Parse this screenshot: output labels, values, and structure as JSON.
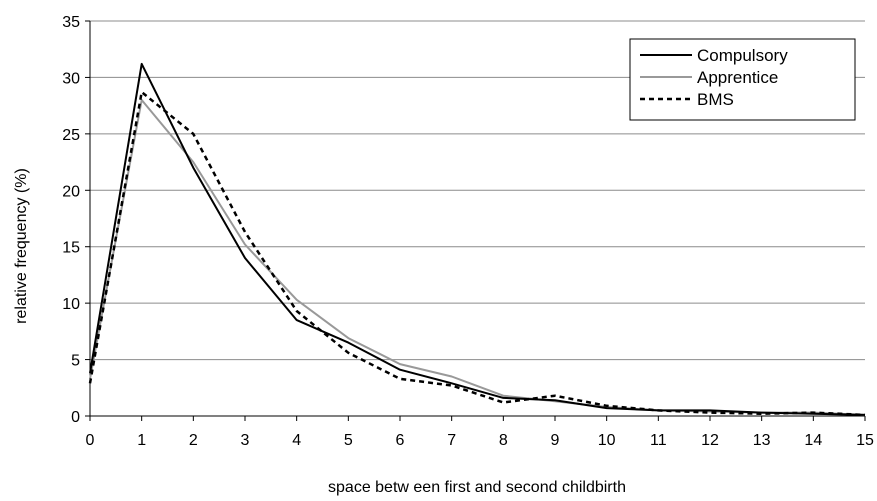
{
  "chart_data": {
    "type": "line",
    "title": "",
    "xlabel": "space betw een first and second childbirth",
    "ylabel": "relative frequency (%)",
    "xlim": [
      0,
      15
    ],
    "ylim": [
      0,
      35
    ],
    "x_ticks": [
      "0",
      "1",
      "2",
      "3",
      "4",
      "5",
      "6",
      "7",
      "8",
      "9",
      "10",
      "11",
      "12",
      "13",
      "14",
      "15"
    ],
    "y_ticks": [
      "0",
      "5",
      "10",
      "15",
      "20",
      "25",
      "30",
      "35"
    ],
    "grid": "horizontal",
    "legend_position": "top-right",
    "x": [
      0,
      1,
      2,
      3,
      4,
      5,
      6,
      7,
      8,
      9,
      10,
      11,
      12,
      13,
      14,
      15
    ],
    "series": [
      {
        "name": "Compulsory",
        "color": "#000000",
        "dash": "solid",
        "values": [
          3.8,
          31.2,
          22.0,
          14.0,
          8.5,
          6.5,
          4.1,
          2.9,
          1.6,
          1.4,
          0.7,
          0.5,
          0.5,
          0.3,
          0.2,
          0.1
        ]
      },
      {
        "name": "Apprentice",
        "color": "#999999",
        "dash": "solid",
        "values": [
          3.3,
          28.0,
          22.5,
          15.2,
          10.3,
          6.9,
          4.6,
          3.5,
          1.8,
          1.3,
          0.8,
          0.5,
          0.4,
          0.3,
          0.3,
          0.1
        ]
      },
      {
        "name": "BMS",
        "color": "#000000",
        "dash": "dashed",
        "values": [
          2.9,
          28.7,
          25.0,
          16.3,
          9.3,
          5.6,
          3.3,
          2.7,
          1.2,
          1.8,
          0.9,
          0.5,
          0.3,
          0.2,
          0.3,
          0.1
        ]
      }
    ]
  }
}
